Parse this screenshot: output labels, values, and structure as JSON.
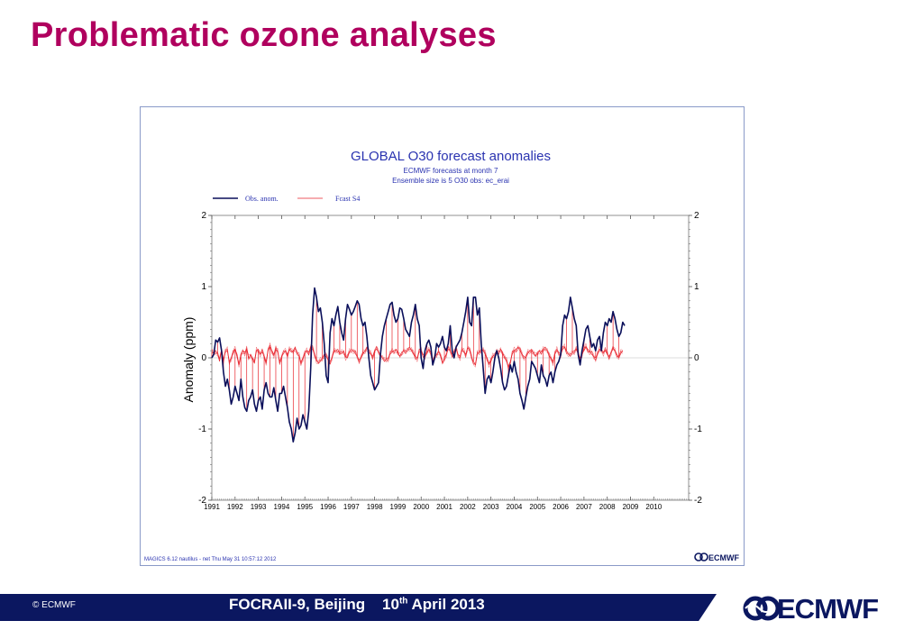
{
  "slide": {
    "title": "Problematic ozone analyses",
    "copyright": "© ECMWF",
    "footer_event": "FOCRAII-9, Beijing",
    "footer_day": "10",
    "footer_day_suffix": "th",
    "footer_rest": " April 2013",
    "logo_text": "ECMWF"
  },
  "chart_data": {
    "type": "line",
    "title": "GLOBAL O30 forecast anomalies",
    "subtitle_1": "ECMWF forecasts at month  7",
    "subtitle_2": "Ensemble size is  5     O30 obs: ec_erai",
    "ylabel": "Anomaly (ppm)",
    "xlabel": "",
    "ylim": [
      -2,
      2
    ],
    "xlim": [
      1991.0,
      2011.5
    ],
    "y_ticks": [
      "2",
      "1",
      "0",
      "-1",
      "-2"
    ],
    "x_ticks": [
      "1991",
      "1992",
      "1993",
      "1994",
      "1995",
      "1996",
      "1997",
      "1998",
      "1999",
      "2000",
      "2001",
      "2002",
      "2003",
      "2004",
      "2005",
      "2006",
      "2007",
      "2008",
      "2009",
      "2010"
    ],
    "legend": {
      "placement": "top-left",
      "entries": [
        "Obs. anom.",
        "Fcast S4"
      ]
    },
    "footer_left": "MAGICS 6.12 nautilus - net Thu May 31 10:57:12 2012",
    "footer_logo": "ECMWF",
    "colors": {
      "observed": "#0a0f5a",
      "forecast": "#e8242c",
      "title": "#2a33b0",
      "axis": "#555555"
    },
    "series": [
      {
        "name": "Obs. anom.",
        "x_start": 1991.0,
        "x_step_months": 1,
        "values": [
          0.0,
          0.05,
          0.25,
          0.22,
          0.28,
          0.1,
          -0.2,
          -0.4,
          -0.3,
          -0.45,
          -0.65,
          -0.55,
          -0.4,
          -0.5,
          -0.6,
          -0.3,
          -0.55,
          -0.7,
          -0.75,
          -0.6,
          -0.55,
          -0.45,
          -0.65,
          -0.75,
          -0.6,
          -0.55,
          -0.72,
          -0.45,
          -0.35,
          -0.5,
          -0.55,
          -0.55,
          -0.42,
          -0.6,
          -0.75,
          -0.5,
          -0.5,
          -0.4,
          -0.55,
          -0.7,
          -0.9,
          -1.0,
          -1.18,
          -1.05,
          -0.85,
          -1.0,
          -0.95,
          -0.8,
          -0.9,
          -1.0,
          -0.75,
          -0.15,
          0.6,
          0.98,
          0.85,
          0.65,
          0.7,
          0.5,
          0.2,
          -0.25,
          -0.35,
          0.35,
          0.55,
          0.45,
          0.6,
          0.72,
          0.5,
          0.35,
          0.25,
          0.55,
          0.75,
          0.68,
          0.6,
          0.65,
          0.72,
          0.8,
          0.75,
          0.55,
          0.45,
          0.5,
          0.3,
          0.0,
          -0.25,
          -0.35,
          -0.45,
          -0.4,
          -0.35,
          0.05,
          0.3,
          0.45,
          0.55,
          0.65,
          0.75,
          0.78,
          0.6,
          0.5,
          0.55,
          0.7,
          0.68,
          0.55,
          0.4,
          0.35,
          0.3,
          0.5,
          0.6,
          0.75,
          0.55,
          0.45,
          0.0,
          -0.15,
          0.1,
          0.2,
          0.25,
          0.15,
          -0.1,
          0.0,
          0.2,
          0.15,
          0.2,
          0.3,
          0.15,
          0.1,
          0.2,
          0.45,
          0.1,
          0.0,
          0.15,
          0.2,
          0.25,
          0.35,
          0.5,
          0.65,
          0.85,
          0.5,
          0.45,
          0.85,
          0.85,
          0.6,
          0.7,
          0.2,
          -0.15,
          -0.5,
          -0.3,
          -0.25,
          -0.35,
          -0.2,
          0.0,
          0.1,
          0.0,
          -0.15,
          -0.35,
          -0.45,
          -0.4,
          -0.25,
          -0.1,
          -0.2,
          -0.05,
          -0.2,
          -0.3,
          -0.5,
          -0.6,
          -0.72,
          -0.55,
          -0.4,
          -0.3,
          -0.05,
          -0.1,
          -0.15,
          -0.25,
          -0.35,
          -0.1,
          -0.25,
          -0.3,
          -0.4,
          -0.25,
          -0.2,
          -0.35,
          -0.2,
          -0.1,
          -0.05,
          0.05,
          0.45,
          0.6,
          0.55,
          0.65,
          0.85,
          0.7,
          0.55,
          0.45,
          0.05,
          -0.1,
          0.1,
          0.25,
          0.4,
          0.45,
          0.3,
          0.15,
          0.2,
          0.1,
          0.25,
          0.3,
          0.1,
          0.35,
          0.5,
          0.45,
          0.55,
          0.5,
          0.65,
          0.55,
          0.4,
          0.3,
          0.35,
          0.5,
          0.45
        ]
      },
      {
        "name": "Fcast S4",
        "x_start": 1991.0,
        "x_step_months": 1,
        "values": [
          0.08,
          0.06,
          0.1,
          0.05,
          -0.05,
          0.12,
          -0.02,
          0.08,
          0.1,
          -0.05,
          0.0,
          0.06,
          0.12,
          0.05,
          -0.1,
          0.02,
          0.1,
          0.08,
          0.12,
          -0.02,
          0.05,
          0.0,
          -0.08,
          0.1,
          0.12,
          0.05,
          0.08,
          0.02,
          -0.05,
          0.1,
          0.15,
          0.1,
          0.05,
          0.12,
          0.08,
          -0.05,
          0.02,
          0.06,
          0.1,
          0.05,
          0.12,
          0.08,
          0.1,
          0.15,
          0.05,
          0.02,
          -0.06,
          0.0,
          0.05,
          0.1,
          0.08,
          0.15,
          0.12,
          0.05,
          -0.02,
          -0.08,
          -0.05,
          0.0,
          0.05,
          0.02,
          -0.03,
          -0.05,
          0.0,
          0.08,
          0.1,
          0.12,
          0.05,
          0.06,
          0.1,
          0.02,
          0.0,
          0.08,
          0.12,
          0.1,
          0.06,
          0.02,
          -0.03,
          0.0,
          0.05,
          0.1,
          0.15,
          0.08,
          0.05,
          0.02,
          0.1,
          0.12,
          0.08,
          0.05,
          0.0,
          -0.05,
          -0.02,
          0.0,
          0.05,
          0.08,
          0.1,
          0.12,
          0.05,
          0.02,
          0.08,
          0.1,
          0.06,
          0.12,
          0.15,
          0.1,
          0.05,
          0.02,
          0.0,
          0.08,
          0.1,
          0.05,
          0.02,
          0.06,
          0.12,
          0.08,
          -0.05,
          0.0,
          0.05,
          0.1,
          0.02,
          -0.08,
          0.0,
          0.05,
          0.12,
          0.1,
          0.05,
          0.08,
          0.12,
          0.05,
          0.02,
          0.1,
          0.08,
          0.05,
          0.15,
          0.1,
          0.0,
          -0.05,
          -0.1,
          0.05,
          0.08,
          0.12,
          0.1,
          0.05,
          0.0,
          -0.08,
          -0.05,
          0.02,
          0.06,
          0.1,
          0.05,
          0.12,
          0.08,
          0.0,
          -0.05,
          -0.12,
          -0.05,
          0.05,
          0.1,
          0.12,
          0.15,
          0.1,
          0.05,
          0.02,
          0.0,
          0.06,
          0.1,
          0.12,
          0.05,
          0.02,
          0.08,
          0.1,
          0.05,
          0.12,
          0.15,
          0.1,
          0.02,
          0.0,
          -0.05,
          0.05,
          0.1,
          0.08,
          0.05,
          0.12,
          0.15,
          0.1,
          0.05,
          0.02,
          0.08,
          0.1,
          0.12,
          0.05,
          0.0,
          0.06,
          0.1,
          0.15,
          0.12,
          0.08,
          0.05,
          0.02,
          0.0,
          0.05,
          0.1,
          0.12,
          0.08,
          0.1,
          0.05,
          0.02,
          0.08,
          0.12,
          0.1,
          0.05,
          0.0,
          0.06,
          0.1
        ]
      }
    ]
  }
}
